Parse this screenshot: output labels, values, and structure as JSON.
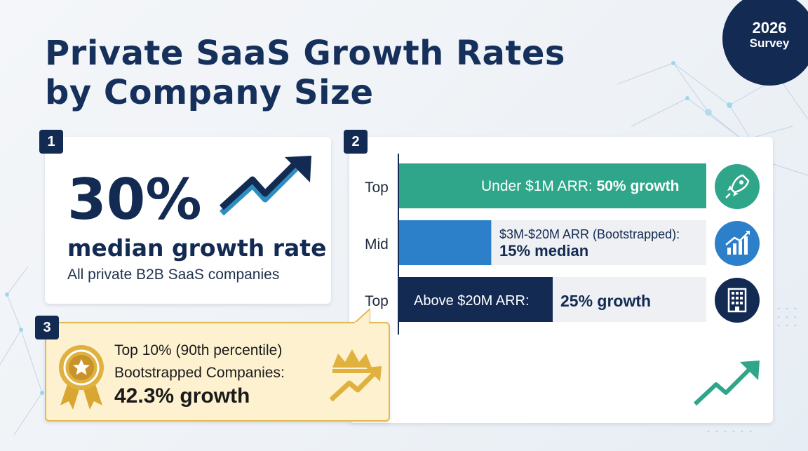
{
  "title": {
    "line1": "Private SaaS Growth Rates",
    "line2": "by Company Size"
  },
  "badge": {
    "year": "2026",
    "label": "Survey"
  },
  "panel1": {
    "number": "1",
    "value": "30%",
    "label": "median growth rate",
    "sublabel": "All private B2B SaaS companies",
    "icon": "trend-up-arrow-icon"
  },
  "panel2": {
    "number": "2"
  },
  "panel3": {
    "number": "3",
    "line1": "Top 10% (90th percentile)",
    "line2": "Bootstrapped Companies:",
    "line3": "42.3% growth",
    "icons": [
      "award-ribbon-icon",
      "crown-growth-icon"
    ]
  },
  "chart_data": {
    "type": "bar",
    "orientation": "horizontal",
    "categories": [
      "Top",
      "Mid",
      "Top"
    ],
    "values": [
      50,
      15,
      25
    ],
    "xlim": [
      0,
      50
    ],
    "bar_labels": [
      {
        "name": "Under $1M ARR:",
        "value_text": "50% growth"
      },
      {
        "name": "$3M-$20M ARR (Bootstrapped):",
        "value_text": "15% median"
      },
      {
        "name": "Above $20M ARR:",
        "value_text": "25% growth"
      }
    ],
    "colors": [
      "#2fa689",
      "#2c80c9",
      "#132a52"
    ],
    "row_icons": [
      "rocket-icon",
      "bar-chart-growth-icon",
      "office-building-icon"
    ],
    "grid": false
  }
}
